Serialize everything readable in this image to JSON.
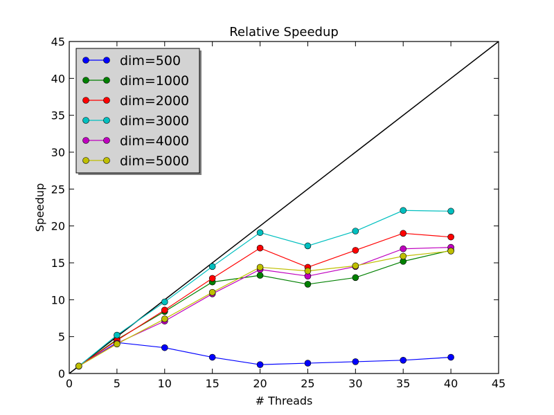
{
  "chart_data": {
    "type": "line",
    "title": "Relative Speedup",
    "xlabel": "# Threads",
    "ylabel": "Speedup",
    "xlim": [
      0,
      45
    ],
    "ylim": [
      0,
      45
    ],
    "xticks": [
      "0",
      "5",
      "10",
      "15",
      "20",
      "25",
      "30",
      "35",
      "40",
      "45"
    ],
    "yticks": [
      "0",
      "5",
      "10",
      "15",
      "20",
      "25",
      "30",
      "35",
      "40",
      "45"
    ],
    "grid": false,
    "legend_position": "top-left",
    "reference_line": {
      "x": [
        0,
        45
      ],
      "y": [
        0,
        45
      ],
      "color": "#000000"
    },
    "x": [
      1,
      5,
      10,
      15,
      20,
      25,
      30,
      35,
      40
    ],
    "series": [
      {
        "name": "dim=500",
        "color": "#0000ff",
        "values": [
          1.0,
          4.2,
          3.5,
          2.2,
          1.2,
          1.4,
          1.6,
          1.8,
          2.2
        ]
      },
      {
        "name": "dim=1000",
        "color": "#008000",
        "values": [
          1.0,
          4.6,
          8.4,
          12.4,
          13.3,
          12.1,
          13.0,
          15.2,
          16.7
        ]
      },
      {
        "name": "dim=2000",
        "color": "#ff0000",
        "values": [
          1.0,
          4.5,
          8.6,
          12.9,
          17.0,
          14.4,
          16.7,
          19.0,
          18.5
        ]
      },
      {
        "name": "dim=3000",
        "color": "#00bfbf",
        "values": [
          1.0,
          5.2,
          9.7,
          14.5,
          19.1,
          17.3,
          19.3,
          22.1,
          22.0
        ]
      },
      {
        "name": "dim=4000",
        "color": "#bf00bf",
        "values": [
          1.0,
          4.1,
          7.1,
          10.8,
          14.1,
          13.2,
          14.5,
          16.9,
          17.1
        ]
      },
      {
        "name": "dim=5000",
        "color": "#bfbf00",
        "values": [
          1.0,
          4.0,
          7.4,
          11.0,
          14.4,
          13.9,
          14.6,
          15.9,
          16.6
        ]
      }
    ]
  }
}
